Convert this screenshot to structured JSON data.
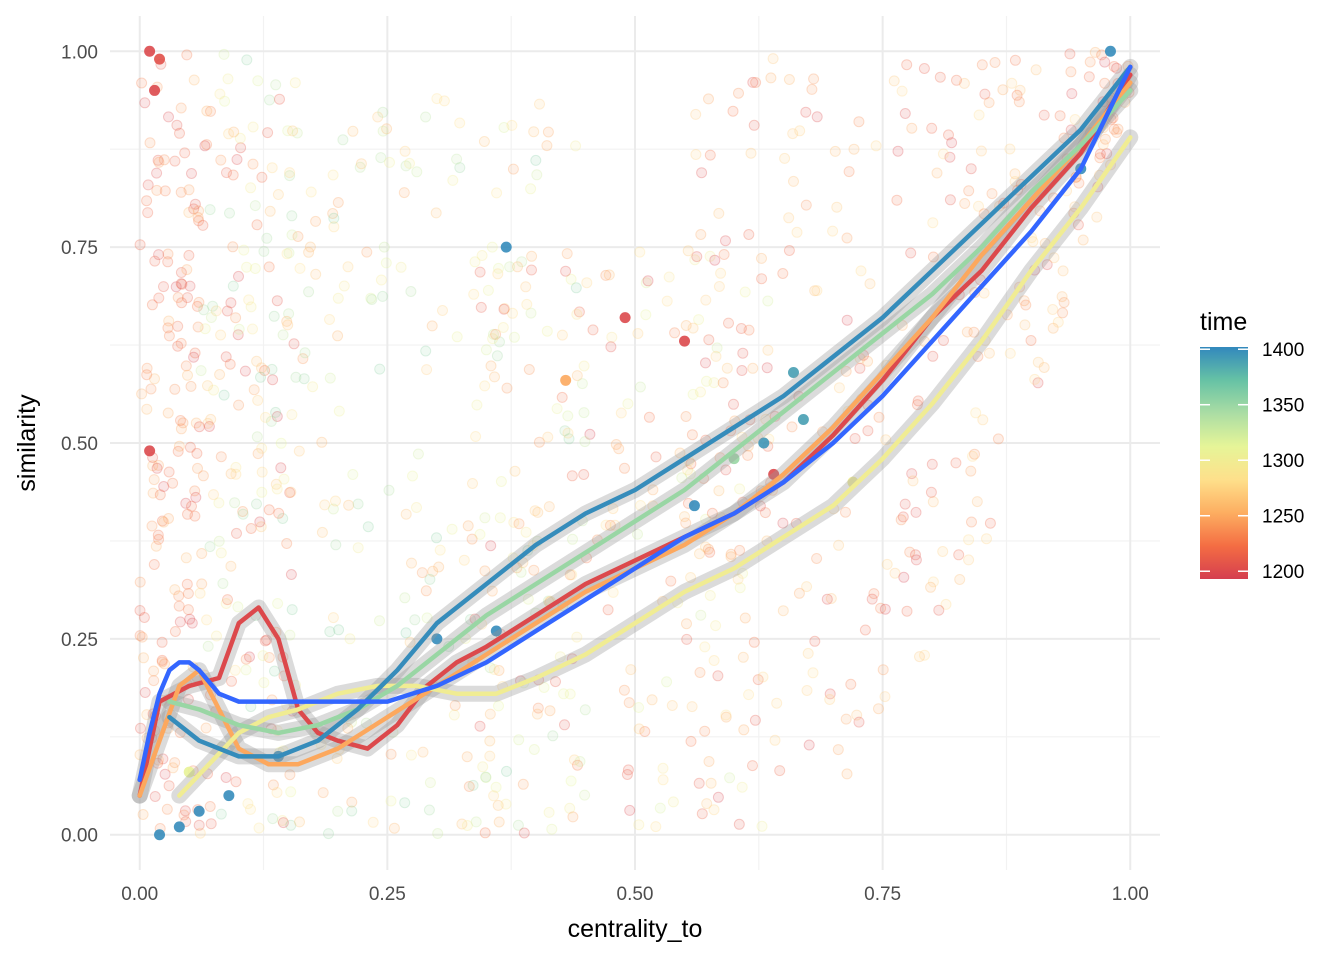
{
  "chart_data": {
    "type": "scatter",
    "title": "",
    "xlabel": "centrality_to",
    "ylabel": "similarity",
    "xlim": [
      -0.03,
      1.03
    ],
    "ylim": [
      -0.045,
      1.045
    ],
    "x_ticks": [
      0.0,
      0.25,
      0.5,
      0.75,
      1.0
    ],
    "x_tick_labels": [
      "0.00",
      "0.25",
      "0.50",
      "0.75",
      "1.00"
    ],
    "y_ticks": [
      0.0,
      0.25,
      0.5,
      0.75,
      1.0
    ],
    "y_tick_labels": [
      "0.00",
      "0.25",
      "0.50",
      "0.75",
      "1.00"
    ],
    "grid": true,
    "legend": {
      "title": "time",
      "position": "right",
      "type": "colorbar",
      "range": [
        1193,
        1402
      ],
      "breaks": [
        1200,
        1250,
        1300,
        1350,
        1400
      ],
      "break_labels": [
        "1200",
        "1250",
        "1300",
        "1350",
        "1400"
      ],
      "colors": [
        "#d53e4f",
        "#f46d43",
        "#fdae61",
        "#fee08b",
        "#e6f598",
        "#abdda4",
        "#66c2a5",
        "#3288bd"
      ]
    },
    "point_clouds": [
      {
        "x_range": [
          0.0,
          0.06
        ],
        "y_range": [
          0.0,
          1.0
        ],
        "time_range": [
          1195,
          1260
        ],
        "count": 160
      },
      {
        "x_range": [
          0.06,
          0.16
        ],
        "y_range": [
          0.0,
          1.0
        ],
        "time_range": [
          1195,
          1360
        ],
        "count": 200
      },
      {
        "x_range": [
          0.16,
          0.45
        ],
        "y_range": [
          0.0,
          0.95
        ],
        "time_range": [
          1240,
          1360
        ],
        "count": 220
      },
      {
        "x_range": [
          0.33,
          0.65
        ],
        "y_range": [
          0.0,
          0.75
        ],
        "time_range": [
          1195,
          1330
        ],
        "count": 200
      },
      {
        "x_range": [
          0.55,
          1.0
        ],
        "y_range": [
          0.05,
          1.0
        ],
        "time_range": [
          1195,
          1280
        ],
        "count": 320
      }
    ],
    "highlight_points": [
      {
        "x": 0.49,
        "y": 0.66,
        "time": 1200
      },
      {
        "x": 0.55,
        "y": 0.63,
        "time": 1200
      },
      {
        "x": 0.43,
        "y": 0.58,
        "time": 1250
      },
      {
        "x": 0.37,
        "y": 0.75,
        "time": 1400
      },
      {
        "x": 0.64,
        "y": 0.46,
        "time": 1200
      },
      {
        "x": 0.66,
        "y": 0.59,
        "time": 1390
      },
      {
        "x": 0.63,
        "y": 0.5,
        "time": 1395
      },
      {
        "x": 0.56,
        "y": 0.42,
        "time": 1400
      },
      {
        "x": 0.67,
        "y": 0.53,
        "time": 1390
      },
      {
        "x": 0.06,
        "y": 0.03,
        "time": 1400
      },
      {
        "x": 0.09,
        "y": 0.05,
        "time": 1400
      },
      {
        "x": 0.04,
        "y": 0.01,
        "time": 1400
      },
      {
        "x": 0.02,
        "y": 0.0,
        "time": 1400
      },
      {
        "x": 0.36,
        "y": 0.26,
        "time": 1400
      },
      {
        "x": 0.3,
        "y": 0.25,
        "time": 1400
      },
      {
        "x": 0.14,
        "y": 0.1,
        "time": 1400
      },
      {
        "x": 0.72,
        "y": 0.45,
        "time": 1300
      },
      {
        "x": 0.6,
        "y": 0.48,
        "time": 1350
      },
      {
        "x": 0.98,
        "y": 1.0,
        "time": 1400
      },
      {
        "x": 0.95,
        "y": 0.85,
        "time": 1400
      },
      {
        "x": 0.01,
        "y": 1.0,
        "time": 1200
      },
      {
        "x": 0.02,
        "y": 0.99,
        "time": 1205
      },
      {
        "x": 0.015,
        "y": 0.95,
        "time": 1200
      },
      {
        "x": 0.01,
        "y": 0.49,
        "time": 1200
      },
      {
        "x": 0.05,
        "y": 0.08,
        "time": 1310
      }
    ],
    "series": [
      {
        "time": 1200,
        "x": [
          0.0,
          0.02,
          0.05,
          0.08,
          0.1,
          0.12,
          0.14,
          0.16,
          0.18,
          0.2,
          0.23,
          0.26,
          0.29,
          0.32,
          0.35,
          0.4,
          0.45,
          0.5,
          0.55,
          0.6,
          0.65,
          0.7,
          0.75,
          0.8,
          0.85,
          0.9,
          0.95,
          1.0
        ],
        "y": [
          0.05,
          0.17,
          0.19,
          0.2,
          0.27,
          0.29,
          0.25,
          0.16,
          0.13,
          0.12,
          0.11,
          0.14,
          0.19,
          0.22,
          0.24,
          0.28,
          0.32,
          0.35,
          0.38,
          0.41,
          0.45,
          0.51,
          0.58,
          0.66,
          0.72,
          0.8,
          0.87,
          0.97
        ]
      },
      {
        "time": 1250,
        "x": [
          0.0,
          0.02,
          0.04,
          0.06,
          0.08,
          0.1,
          0.13,
          0.16,
          0.2,
          0.25,
          0.3,
          0.35,
          0.4,
          0.45,
          0.5,
          0.55,
          0.6,
          0.65,
          0.7,
          0.75,
          0.8,
          0.85,
          0.9,
          0.95,
          1.0
        ],
        "y": [
          0.05,
          0.12,
          0.19,
          0.21,
          0.16,
          0.11,
          0.09,
          0.09,
          0.11,
          0.15,
          0.19,
          0.23,
          0.27,
          0.31,
          0.34,
          0.37,
          0.41,
          0.46,
          0.52,
          0.59,
          0.66,
          0.74,
          0.81,
          0.88,
          0.96
        ]
      },
      {
        "time": 1300,
        "x": [
          0.04,
          0.07,
          0.1,
          0.13,
          0.16,
          0.2,
          0.24,
          0.28,
          0.32,
          0.36,
          0.4,
          0.45,
          0.5,
          0.55,
          0.6,
          0.65,
          0.7,
          0.75,
          0.8,
          0.85,
          0.9,
          0.95,
          1.0
        ],
        "y": [
          0.05,
          0.09,
          0.13,
          0.15,
          0.16,
          0.18,
          0.19,
          0.19,
          0.18,
          0.18,
          0.2,
          0.23,
          0.27,
          0.31,
          0.34,
          0.38,
          0.42,
          0.48,
          0.55,
          0.63,
          0.72,
          0.8,
          0.89
        ]
      },
      {
        "time": 1350,
        "x": [
          0.03,
          0.06,
          0.1,
          0.14,
          0.18,
          0.22,
          0.26,
          0.3,
          0.35,
          0.4,
          0.45,
          0.5,
          0.55,
          0.6,
          0.65,
          0.7,
          0.75,
          0.8,
          0.85,
          0.9,
          0.95,
          1.0
        ],
        "y": [
          0.17,
          0.16,
          0.14,
          0.13,
          0.14,
          0.16,
          0.19,
          0.23,
          0.28,
          0.32,
          0.36,
          0.4,
          0.44,
          0.49,
          0.54,
          0.59,
          0.64,
          0.69,
          0.75,
          0.82,
          0.88,
          0.95
        ]
      },
      {
        "time": 1400,
        "x": [
          0.03,
          0.06,
          0.1,
          0.14,
          0.18,
          0.22,
          0.26,
          0.3,
          0.35,
          0.4,
          0.45,
          0.5,
          0.55,
          0.6,
          0.65,
          0.7,
          0.75,
          0.8,
          0.85,
          0.9,
          0.95,
          1.0
        ],
        "y": [
          0.15,
          0.12,
          0.1,
          0.1,
          0.12,
          0.16,
          0.21,
          0.27,
          0.32,
          0.37,
          0.41,
          0.44,
          0.48,
          0.52,
          0.56,
          0.61,
          0.66,
          0.72,
          0.78,
          0.84,
          0.9,
          0.98
        ]
      },
      {
        "overall": true,
        "color": "#3366ff",
        "x": [
          0.0,
          0.01,
          0.02,
          0.03,
          0.04,
          0.05,
          0.06,
          0.08,
          0.1,
          0.13,
          0.16,
          0.2,
          0.25,
          0.3,
          0.35,
          0.4,
          0.45,
          0.5,
          0.55,
          0.6,
          0.65,
          0.7,
          0.75,
          0.8,
          0.85,
          0.9,
          0.95,
          1.0
        ],
        "y": [
          0.07,
          0.13,
          0.18,
          0.21,
          0.22,
          0.22,
          0.21,
          0.18,
          0.17,
          0.17,
          0.17,
          0.17,
          0.17,
          0.19,
          0.22,
          0.26,
          0.3,
          0.34,
          0.38,
          0.41,
          0.45,
          0.5,
          0.56,
          0.63,
          0.7,
          0.77,
          0.85,
          0.98
        ]
      }
    ]
  }
}
